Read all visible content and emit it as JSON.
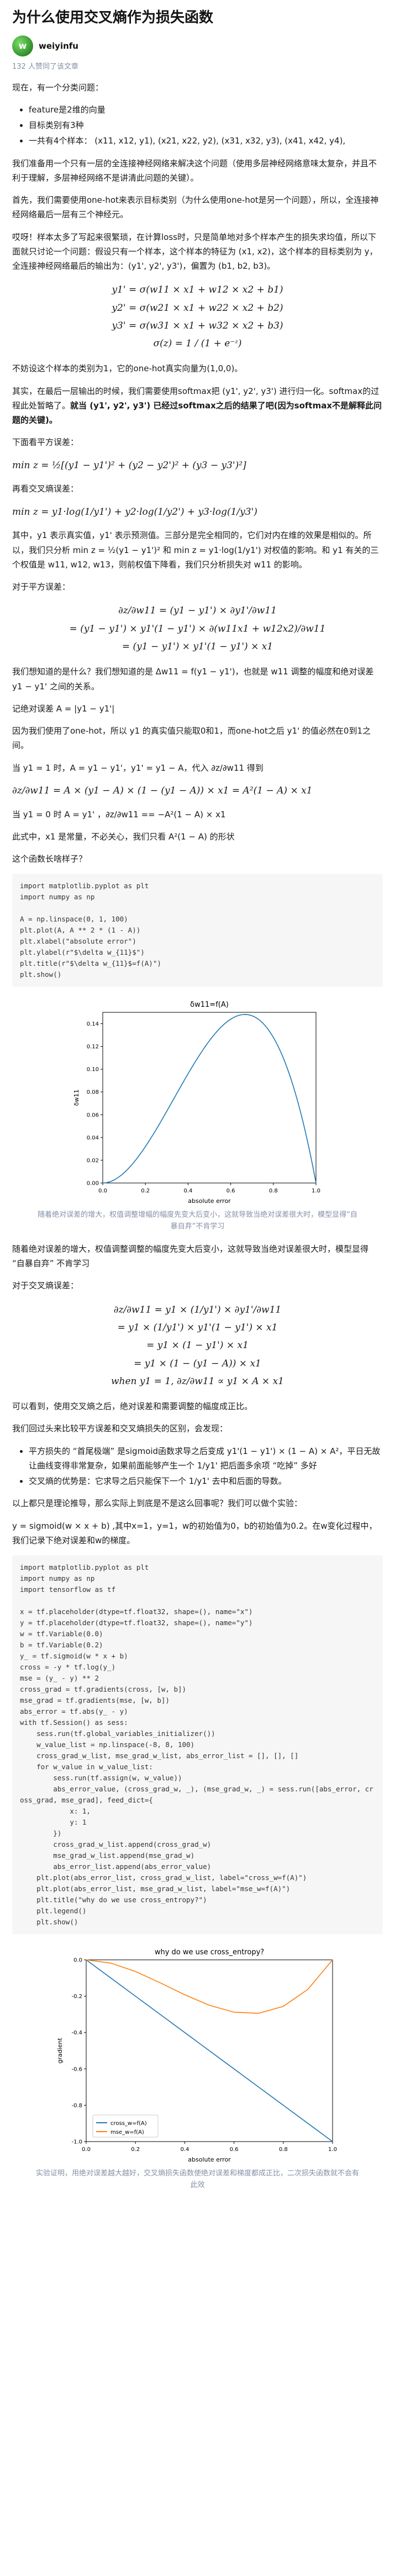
{
  "article": {
    "title": "为什么使用交叉熵作为损失函数",
    "author": "weiyinfu",
    "avatar_letter": "w",
    "likes": "132 人赞同了该文章"
  },
  "text": {
    "p1": "现在，有一个分类问题：",
    "list1": [
      "feature是2维的向量",
      "目标类别有3种",
      "一共有4个样本： (x11, x12, y1), (x21, x22, y2), (x31, x32, y3), (x41, x42, y4),"
    ],
    "p2": "我们准备用一个只有一层的全连接神经网络来解决这个问题（使用多层神经网络意味太复杂，并且不利于理解，多层神经网络不是讲清此问题的关键）。",
    "p3": "首先，我们需要使用one-hot来表示目标类别（为什么使用one-hot是另一个问题），所以，全连接神经网络最后一层有三个神经元。",
    "p4": "哎呀！样本太多了写起来很繁琐，在计算loss时，只是简单地对多个样本产生的损失求均值，所以下面就只讨论一个问题：假设只有一个样本，这个样本的特征为 (x1, x2)，这个样本的目标类别为 y，全连接神经网络最后的输出为：(y1', y2', y3')，偏置为 (b1, b2, b3)。",
    "eq1": [
      "y1' = σ(w11 × x1 + w12 × x2 + b1)",
      "y2' = σ(w21 × x1 + w22 × x2 + b2)",
      "y3' = σ(w31 × x1 + w32 × x2 + b3)",
      "σ(z) = 1 / (1 + e⁻ᶻ)"
    ],
    "p5": "不妨设这个样本的类别为1，它的one-hot真实向量为(1,0,0)。",
    "p6a": "其实，在最后一层输出的时候，我们需要使用softmax把 (y1', y2', y3') 进行归一化。softmax的过程此处暂略了。",
    "p6b": "就当 (y1', y2', y3') 已经过softmax之后的结果了吧(因为softmax不是解释此问题的关键)。",
    "p7": "下面看平方误差：",
    "eq2": "min   z = ½[(y1 − y1')² + (y2 − y2')² + (y3 − y3')²]",
    "p8": "再看交叉熵误差：",
    "eq3": "min   z = y1·log(1/y1') + y2·log(1/y2') + y3·log(1/y3')",
    "p9": "其中，y1 表示真实值，y1' 表示预测值。三部分是完全相同的，它们对内在维的效果是相似的。所以，我们只分析 min  z = ½(y1 − y1')² 和 min  z = y1·log(1/y1') 对权值的影响。和 y1 有关的三个权值是 w11, w12, w13，则前权值下降看，我们只分析损失对 w11 的影响。",
    "p10": "对于平方误差：",
    "eq4": [
      "∂z/∂w11 = (y1 − y1') × ∂y1'/∂w11",
      "= (y1 − y1') × y1'(1 − y1') × ∂(w11x1 + w12x2)/∂w11",
      "= (y1 − y1') × y1'(1 − y1') × x1"
    ],
    "p11": "我们想知道的是什么？我们想知道的是 Δw11 = f(y1 − y1')，也就是 w11 调整的幅度和绝对误差 y1 − y1' 之间的关系。",
    "p12": "记绝对误差 A = |y1 − y1'|",
    "p13": "因为我们使用了one-hot，所以 y1 的真实值只能取0和1，而one-hot之后 y1' 的值必然在0到1之间。",
    "p14": "当 y1 = 1 时，A = y1 − y1'，y1' = y1 − A，代入 ∂z/∂w11 得到",
    "eq5": "∂z/∂w11 = A × (y1 − A) × (1 − (y1 − A)) × x1 = A²(1 − A) × x1",
    "p15": "当 y1 = 0 时 A = y1' ，∂z/∂w11 == −A²(1 − A) × x1",
    "p16": "此式中，x1 是常量，不必关心，我们只看 A²(1 − A) 的形状",
    "p17": "这个函数长啥样子？",
    "code1": [
      "import matplotlib.pyplot as plt",
      "import numpy as np",
      "",
      "A = np.linspace(0, 1, 100)",
      "plt.plot(A, A ** 2 * (1 - A))",
      "plt.xlabel(\"absolute error\")",
      "plt.ylabel(r\"$\\delta w_{11}$\")",
      "plt.title(r\"$\\delta w_{11}$=f(A)\")",
      "plt.show()"
    ],
    "caption1": "随着绝对误差的增大，权值调整增幅的幅度先变大后变小，这就导致当绝对误差很大时，模型显得“自暴自弃”不肯学习",
    "p18": "随着绝对误差的增大，权值调整调整的幅度先变大后变小，这就导致当绝对误差很大时，模型显得 “自暴自弃” 不肯学习",
    "p19": "对于交叉熵误差：",
    "eq6": [
      "∂z/∂w11 = y1 × (1/y1') × ∂y1'/∂w11",
      "= y1 × (1/y1') × y1'(1 − y1') × x1",
      "= y1 × (1 − y1') × x1",
      "= y1 × (1 − (y1 − A)) × x1",
      "when   y1 = 1, ∂z/∂w11 ∝ y1 × A × x1"
    ],
    "p20": "可以看到，使用交叉熵之后，绝对误差和需要调整的幅度成正比。",
    "p21": "我们回过头来比较平方误差和交叉熵损失的区别，会发现：",
    "list2": [
      "平方损失的 “首尾极端” 是sigmoid函数求导之后变成 y1'(1 − y1') × (1 − A) × A²，平日无故让曲线变得非常复杂，如果前面能够产生一个 1/y1' 把后面多余项 “吃掉” 多好",
      "交叉熵的优势是：它求导之后只能保下一个 1/y1' 去中和后面的导数。"
    ],
    "p22": "以上都只是理论推导，那么实际上到底是不是这么回事呢？我们可以做个实验：",
    "p23": "y = sigmoid(w × x + b) ,其中x=1，y=1，w的初始值为0，b的初始值为0.2。在w变化过程中，我们记录下绝对误差和w的梯度。",
    "code2": [
      "import matplotlib.pyplot as plt",
      "import numpy as np",
      "import tensorflow as tf",
      "",
      "x = tf.placeholder(dtype=tf.float32, shape=(), name=\"x\")",
      "y = tf.placeholder(dtype=tf.float32, shape=(), name=\"y\")",
      "w = tf.Variable(0.0)",
      "b = tf.Variable(0.2)",
      "y_ = tf.sigmoid(w * x + b)",
      "cross = -y * tf.log(y_)",
      "mse = (y_ - y) ** 2",
      "cross_grad = tf.gradients(cross, [w, b])",
      "mse_grad = tf.gradients(mse, [w, b])",
      "abs_error = tf.abs(y_ - y)",
      "with tf.Session() as sess:",
      "    sess.run(tf.global_variables_initializer())",
      "    w_value_list = np.linspace(-8, 8, 100)",
      "    cross_grad_w_list, mse_grad_w_list, abs_error_list = [], [], []",
      "    for w_value in w_value_list:",
      "        sess.run(tf.assign(w, w_value))",
      "        abs_error_value, (cross_grad_w, _), (mse_grad_w, _) = sess.run([abs_error, cross_grad, mse_grad], feed_dict={",
      "            x: 1,",
      "            y: 1",
      "        })",
      "        cross_grad_w_list.append(cross_grad_w)",
      "        mse_grad_w_list.append(mse_grad_w)",
      "        abs_error_list.append(abs_error_value)",
      "    plt.plot(abs_error_list, cross_grad_w_list, label=\"cross_w=f(A)\")",
      "    plt.plot(abs_error_list, mse_grad_w_list, label=\"mse_w=f(A)\")",
      "    plt.title(\"why do we use cross_entropy?\")",
      "    plt.legend()",
      "    plt.show()"
    ],
    "caption2": "实验证明，用绝对误差越大越好，交叉熵损失函数使绝对误差和梯度都成正比，二次损失函数就不会有此效"
  },
  "chart_data": [
    {
      "type": "line",
      "title": "δw11=f(A)",
      "xlabel": "absolute error",
      "ylabel": "δw11",
      "xlim": [
        0,
        1
      ],
      "ylim": [
        0,
        0.15
      ],
      "xticks": [
        "0.0",
        "0.2",
        "0.4",
        "0.6",
        "0.8",
        "1.0"
      ],
      "yticks": [
        "0.00",
        "0.02",
        "0.04",
        "0.06",
        "0.08",
        "0.10",
        "0.12",
        "0.14"
      ],
      "series": [
        {
          "x": [
            0,
            0.05,
            0.1,
            0.15,
            0.2,
            0.25,
            0.3,
            0.35,
            0.4,
            0.45,
            0.5,
            0.55,
            0.6,
            0.65,
            0.6667,
            0.7,
            0.75,
            0.8,
            0.85,
            0.9,
            0.95,
            1.0
          ],
          "values": [
            0,
            0.0024,
            0.009,
            0.0191,
            0.032,
            0.0469,
            0.063,
            0.0796,
            0.096,
            0.1114,
            0.125,
            0.1361,
            0.144,
            0.1479,
            0.1481,
            0.147,
            0.1406,
            0.128,
            0.1084,
            0.081,
            0.0451,
            0
          ],
          "color": "#1f77b4"
        }
      ],
      "grid": false
    },
    {
      "type": "line",
      "title": "why do we use cross_entropy?",
      "xlabel": "absolute error",
      "ylabel": "gradient",
      "xlim": [
        0,
        1
      ],
      "ylim": [
        -1.0,
        0.0
      ],
      "xticks": [
        "0.0",
        "0.2",
        "0.4",
        "0.6",
        "0.8",
        "1.0"
      ],
      "yticks": [
        "0.0",
        "-0.2",
        "-0.4",
        "-0.6",
        "-0.8",
        "-1.0"
      ],
      "legend": "bottom-left",
      "series": [
        {
          "name": "cross_w=f(A)",
          "color": "#1f77b4",
          "x": [
            0,
            0.1,
            0.2,
            0.3,
            0.4,
            0.5,
            0.6,
            0.7,
            0.8,
            0.9,
            1.0
          ],
          "values": [
            0,
            -0.1,
            -0.2,
            -0.3,
            -0.4,
            -0.5,
            -0.6,
            -0.7,
            -0.8,
            -0.9,
            -1.0
          ]
        },
        {
          "name": "mse_w=f(A)",
          "color": "#ff7f0e",
          "x": [
            0,
            0.1,
            0.2,
            0.3,
            0.4,
            0.5,
            0.6,
            0.7,
            0.8,
            0.9,
            1.0
          ],
          "values": [
            0,
            -0.018,
            -0.064,
            -0.126,
            -0.192,
            -0.25,
            -0.288,
            -0.294,
            -0.256,
            -0.162,
            0
          ]
        }
      ],
      "grid": false
    }
  ]
}
